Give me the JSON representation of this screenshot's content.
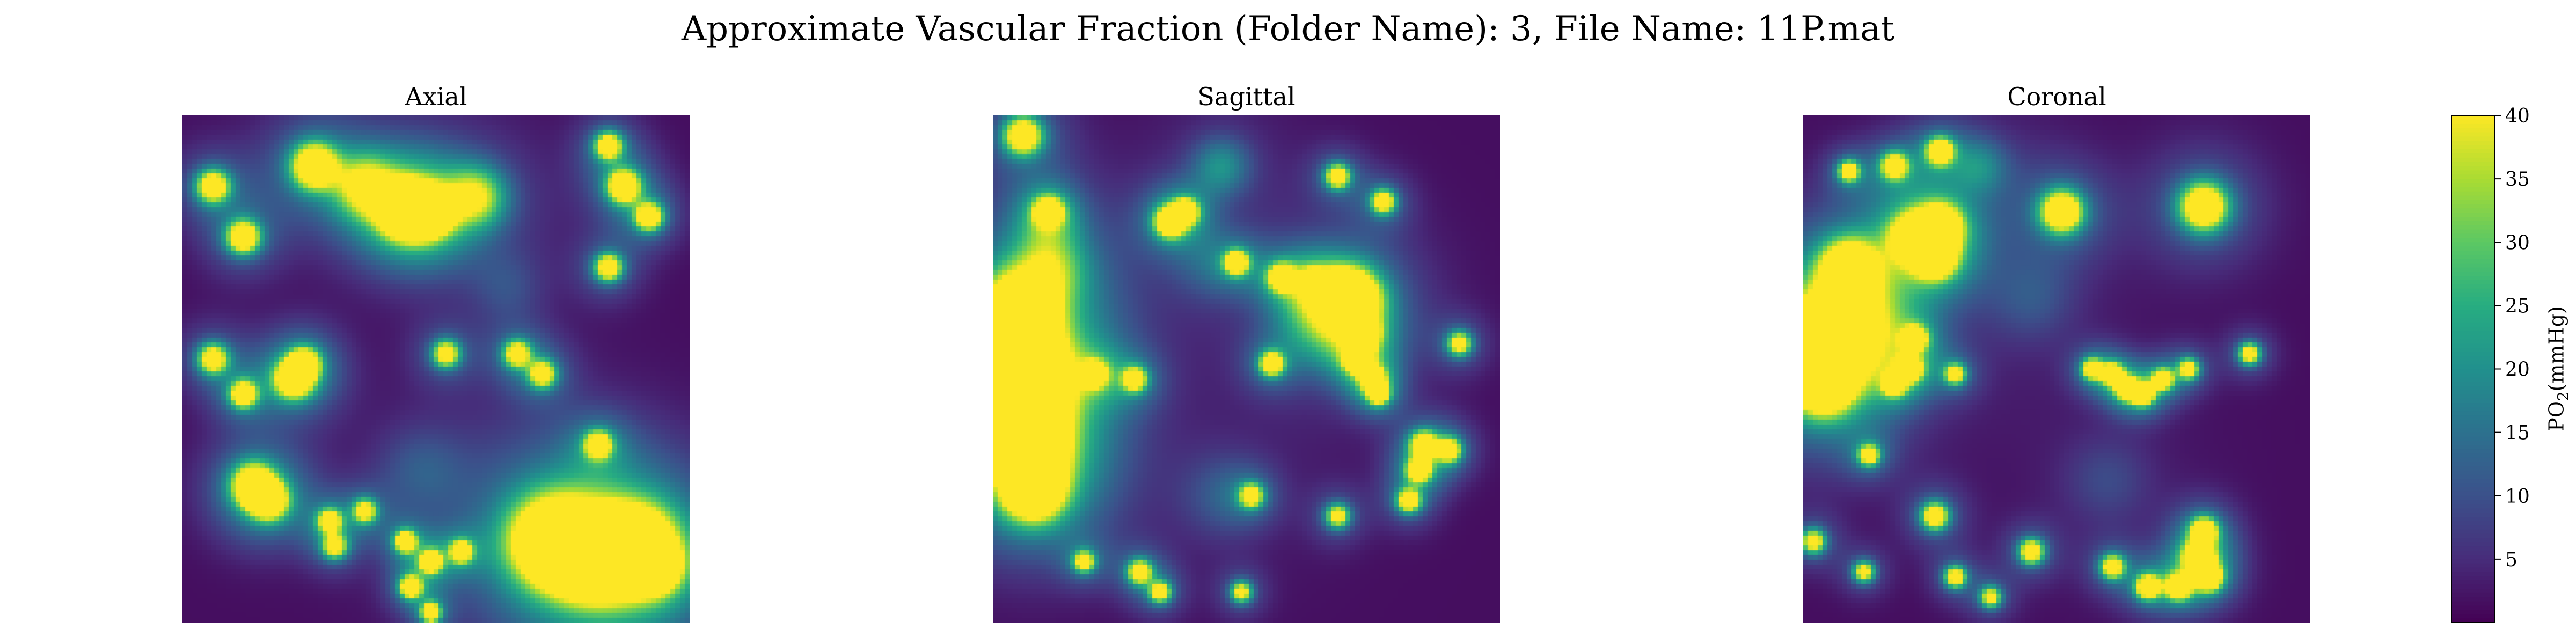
{
  "figure": {
    "suptitle": "Approximate Vascular Fraction (Folder Name): 3, File Name: 11P.mat"
  },
  "chart_data": [
    {
      "type": "heatmap",
      "title": "Axial",
      "colormap": "viridis",
      "vmin": 0,
      "vmax": 40,
      "background_value": 1.5,
      "grid": false,
      "axes_visible": false,
      "features": [
        {
          "x": 0.26,
          "y": 0.1,
          "r": 0.03,
          "value": 40
        },
        {
          "x": 0.43,
          "y": 0.18,
          "r": 0.028,
          "value": 40
        },
        {
          "x": 0.45,
          "y": 0.19,
          "r": 0.032,
          "value": 40
        },
        {
          "x": 0.49,
          "y": 0.19,
          "r": 0.028,
          "value": 40
        },
        {
          "x": 0.58,
          "y": 0.16,
          "r": 0.04,
          "value": 22
        },
        {
          "x": 0.36,
          "y": 0.14,
          "r": 0.04,
          "value": 22
        },
        {
          "x": 0.06,
          "y": 0.14,
          "r": 0.022,
          "value": 36
        },
        {
          "x": 0.12,
          "y": 0.24,
          "r": 0.022,
          "value": 38
        },
        {
          "x": 0.84,
          "y": 0.06,
          "r": 0.018,
          "value": 36
        },
        {
          "x": 0.87,
          "y": 0.14,
          "r": 0.022,
          "value": 40
        },
        {
          "x": 0.92,
          "y": 0.2,
          "r": 0.018,
          "value": 38
        },
        {
          "x": 0.84,
          "y": 0.3,
          "r": 0.018,
          "value": 36
        },
        {
          "x": 0.06,
          "y": 0.48,
          "r": 0.02,
          "value": 34
        },
        {
          "x": 0.12,
          "y": 0.55,
          "r": 0.018,
          "value": 36
        },
        {
          "x": 0.22,
          "y": 0.52,
          "r": 0.025,
          "value": 40
        },
        {
          "x": 0.24,
          "y": 0.49,
          "r": 0.02,
          "value": 38
        },
        {
          "x": 0.52,
          "y": 0.47,
          "r": 0.018,
          "value": 32
        },
        {
          "x": 0.66,
          "y": 0.47,
          "r": 0.018,
          "value": 32
        },
        {
          "x": 0.71,
          "y": 0.51,
          "r": 0.018,
          "value": 32
        },
        {
          "x": 0.82,
          "y": 0.65,
          "r": 0.018,
          "value": 34
        },
        {
          "x": 0.14,
          "y": 0.73,
          "r": 0.028,
          "value": 40
        },
        {
          "x": 0.17,
          "y": 0.76,
          "r": 0.025,
          "value": 38
        },
        {
          "x": 0.29,
          "y": 0.8,
          "r": 0.016,
          "value": 32
        },
        {
          "x": 0.36,
          "y": 0.78,
          "r": 0.016,
          "value": 30
        },
        {
          "x": 0.3,
          "y": 0.85,
          "r": 0.016,
          "value": 30
        },
        {
          "x": 0.73,
          "y": 0.84,
          "r": 0.058,
          "value": 40
        },
        {
          "x": 0.81,
          "y": 0.87,
          "r": 0.055,
          "value": 40
        },
        {
          "x": 0.89,
          "y": 0.85,
          "r": 0.05,
          "value": 40
        },
        {
          "x": 0.93,
          "y": 0.89,
          "r": 0.03,
          "value": 40
        },
        {
          "x": 0.44,
          "y": 0.84,
          "r": 0.014,
          "value": 40
        },
        {
          "x": 0.49,
          "y": 0.88,
          "r": 0.014,
          "value": 40
        },
        {
          "x": 0.45,
          "y": 0.93,
          "r": 0.014,
          "value": 40
        },
        {
          "x": 0.49,
          "y": 0.98,
          "r": 0.012,
          "value": 40
        },
        {
          "x": 0.55,
          "y": 0.86,
          "r": 0.014,
          "value": 36
        },
        {
          "x": 0.47,
          "y": 0.7,
          "r": 0.06,
          "value": 6
        },
        {
          "x": 0.64,
          "y": 0.34,
          "r": 0.05,
          "value": 5
        }
      ]
    },
    {
      "type": "heatmap",
      "title": "Sagittal",
      "colormap": "viridis",
      "vmin": 0,
      "vmax": 40,
      "background_value": 1.5,
      "grid": false,
      "axes_visible": false,
      "features": [
        {
          "x": 0.06,
          "y": 0.04,
          "r": 0.025,
          "value": 38
        },
        {
          "x": 0.05,
          "y": 0.39,
          "r": 0.048,
          "value": 40
        },
        {
          "x": 0.06,
          "y": 0.48,
          "r": 0.048,
          "value": 40
        },
        {
          "x": 0.07,
          "y": 0.57,
          "r": 0.048,
          "value": 40
        },
        {
          "x": 0.07,
          "y": 0.66,
          "r": 0.048,
          "value": 40
        },
        {
          "x": 0.08,
          "y": 0.74,
          "r": 0.04,
          "value": 40
        },
        {
          "x": 0.11,
          "y": 0.3,
          "r": 0.05,
          "value": 16
        },
        {
          "x": 0.11,
          "y": 0.2,
          "r": 0.04,
          "value": 8
        },
        {
          "x": 0.11,
          "y": 0.19,
          "r": 0.018,
          "value": 36
        },
        {
          "x": 0.35,
          "y": 0.21,
          "r": 0.02,
          "value": 40
        },
        {
          "x": 0.38,
          "y": 0.19,
          "r": 0.016,
          "value": 38
        },
        {
          "x": 0.45,
          "y": 0.1,
          "r": 0.04,
          "value": 12
        },
        {
          "x": 0.68,
          "y": 0.12,
          "r": 0.016,
          "value": 36
        },
        {
          "x": 0.77,
          "y": 0.17,
          "r": 0.016,
          "value": 34
        },
        {
          "x": 0.48,
          "y": 0.29,
          "r": 0.016,
          "value": 38
        },
        {
          "x": 0.57,
          "y": 0.32,
          "r": 0.018,
          "value": 36
        },
        {
          "x": 0.63,
          "y": 0.33,
          "r": 0.016,
          "value": 34
        },
        {
          "x": 0.68,
          "y": 0.35,
          "r": 0.022,
          "value": 40
        },
        {
          "x": 0.71,
          "y": 0.36,
          "r": 0.035,
          "value": 40
        },
        {
          "x": 0.73,
          "y": 0.43,
          "r": 0.02,
          "value": 38
        },
        {
          "x": 0.72,
          "y": 0.48,
          "r": 0.018,
          "value": 36
        },
        {
          "x": 0.75,
          "y": 0.52,
          "r": 0.016,
          "value": 34
        },
        {
          "x": 0.76,
          "y": 0.55,
          "r": 0.014,
          "value": 34
        },
        {
          "x": 0.65,
          "y": 0.4,
          "r": 0.06,
          "value": 14
        },
        {
          "x": 0.55,
          "y": 0.49,
          "r": 0.016,
          "value": 36
        },
        {
          "x": 0.92,
          "y": 0.45,
          "r": 0.016,
          "value": 32
        },
        {
          "x": 0.2,
          "y": 0.51,
          "r": 0.016,
          "value": 36
        },
        {
          "x": 0.28,
          "y": 0.52,
          "r": 0.016,
          "value": 32
        },
        {
          "x": 0.85,
          "y": 0.65,
          "r": 0.018,
          "value": 36
        },
        {
          "x": 0.9,
          "y": 0.66,
          "r": 0.016,
          "value": 34
        },
        {
          "x": 0.84,
          "y": 0.7,
          "r": 0.016,
          "value": 36
        },
        {
          "x": 0.82,
          "y": 0.76,
          "r": 0.016,
          "value": 34
        },
        {
          "x": 0.51,
          "y": 0.75,
          "r": 0.016,
          "value": 32
        },
        {
          "x": 0.68,
          "y": 0.79,
          "r": 0.016,
          "value": 30
        },
        {
          "x": 0.18,
          "y": 0.88,
          "r": 0.014,
          "value": 32
        },
        {
          "x": 0.29,
          "y": 0.9,
          "r": 0.016,
          "value": 34
        },
        {
          "x": 0.33,
          "y": 0.94,
          "r": 0.014,
          "value": 32
        },
        {
          "x": 0.49,
          "y": 0.94,
          "r": 0.014,
          "value": 30
        },
        {
          "x": 0.42,
          "y": 0.3,
          "r": 0.05,
          "value": 5
        },
        {
          "x": 0.45,
          "y": 0.75,
          "r": 0.06,
          "value": 6
        }
      ]
    },
    {
      "type": "heatmap",
      "title": "Coronal",
      "colormap": "viridis",
      "vmin": 0,
      "vmax": 40,
      "background_value": 1.5,
      "grid": false,
      "axes_visible": false,
      "features": [
        {
          "x": 0.09,
          "y": 0.11,
          "r": 0.014,
          "value": 34
        },
        {
          "x": 0.18,
          "y": 0.1,
          "r": 0.018,
          "value": 34
        },
        {
          "x": 0.27,
          "y": 0.07,
          "r": 0.018,
          "value": 38
        },
        {
          "x": 0.35,
          "y": 0.1,
          "r": 0.04,
          "value": 10
        },
        {
          "x": 0.22,
          "y": 0.24,
          "r": 0.028,
          "value": 40
        },
        {
          "x": 0.27,
          "y": 0.22,
          "r": 0.028,
          "value": 40
        },
        {
          "x": 0.26,
          "y": 0.28,
          "r": 0.026,
          "value": 40
        },
        {
          "x": 0.09,
          "y": 0.3,
          "r": 0.034,
          "value": 40
        },
        {
          "x": 0.07,
          "y": 0.4,
          "r": 0.03,
          "value": 36
        },
        {
          "x": 0.04,
          "y": 0.46,
          "r": 0.048,
          "value": 40
        },
        {
          "x": 0.04,
          "y": 0.53,
          "r": 0.04,
          "value": 40
        },
        {
          "x": 0.09,
          "y": 0.4,
          "r": 0.06,
          "value": 18
        },
        {
          "x": 0.51,
          "y": 0.19,
          "r": 0.028,
          "value": 40
        },
        {
          "x": 0.79,
          "y": 0.18,
          "r": 0.032,
          "value": 40
        },
        {
          "x": 0.22,
          "y": 0.44,
          "r": 0.016,
          "value": 36
        },
        {
          "x": 0.21,
          "y": 0.5,
          "r": 0.016,
          "value": 36
        },
        {
          "x": 0.18,
          "y": 0.53,
          "r": 0.014,
          "value": 34
        },
        {
          "x": 0.3,
          "y": 0.51,
          "r": 0.014,
          "value": 30
        },
        {
          "x": 0.57,
          "y": 0.5,
          "r": 0.014,
          "value": 34
        },
        {
          "x": 0.61,
          "y": 0.51,
          "r": 0.014,
          "value": 38
        },
        {
          "x": 0.64,
          "y": 0.54,
          "r": 0.014,
          "value": 40
        },
        {
          "x": 0.67,
          "y": 0.55,
          "r": 0.014,
          "value": 40
        },
        {
          "x": 0.71,
          "y": 0.52,
          "r": 0.014,
          "value": 34
        },
        {
          "x": 0.76,
          "y": 0.5,
          "r": 0.014,
          "value": 32
        },
        {
          "x": 0.88,
          "y": 0.47,
          "r": 0.014,
          "value": 34
        },
        {
          "x": 0.13,
          "y": 0.67,
          "r": 0.014,
          "value": 32
        },
        {
          "x": 0.26,
          "y": 0.79,
          "r": 0.018,
          "value": 36
        },
        {
          "x": 0.02,
          "y": 0.84,
          "r": 0.016,
          "value": 32
        },
        {
          "x": 0.12,
          "y": 0.9,
          "r": 0.014,
          "value": 30
        },
        {
          "x": 0.3,
          "y": 0.91,
          "r": 0.014,
          "value": 34
        },
        {
          "x": 0.37,
          "y": 0.95,
          "r": 0.014,
          "value": 30
        },
        {
          "x": 0.45,
          "y": 0.86,
          "r": 0.016,
          "value": 36
        },
        {
          "x": 0.61,
          "y": 0.89,
          "r": 0.016,
          "value": 34
        },
        {
          "x": 0.68,
          "y": 0.93,
          "r": 0.016,
          "value": 38
        },
        {
          "x": 0.74,
          "y": 0.93,
          "r": 0.016,
          "value": 40
        },
        {
          "x": 0.8,
          "y": 0.91,
          "r": 0.018,
          "value": 40
        },
        {
          "x": 0.78,
          "y": 0.87,
          "r": 0.02,
          "value": 40
        },
        {
          "x": 0.79,
          "y": 0.82,
          "r": 0.018,
          "value": 38
        },
        {
          "x": 0.45,
          "y": 0.36,
          "r": 0.06,
          "value": 6
        },
        {
          "x": 0.6,
          "y": 0.72,
          "r": 0.06,
          "value": 5
        }
      ]
    }
  ],
  "colorbar": {
    "label": "PO",
    "label_sub": "2",
    "label_units": "(mmHg)",
    "vmin": 0,
    "vmax": 40,
    "ticks": [
      5,
      10,
      15,
      20,
      25,
      30,
      35,
      40
    ]
  }
}
